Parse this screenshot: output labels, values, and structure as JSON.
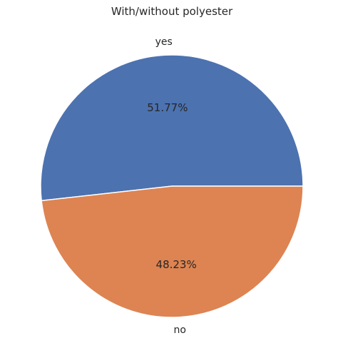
{
  "chart_data": {
    "type": "pie",
    "title": "With/without polyester",
    "categories": [
      "yes",
      "no"
    ],
    "values": [
      51.77,
      48.23
    ],
    "percent_labels": [
      "51.77%",
      "48.23%"
    ],
    "colors": [
      "#4c72b0",
      "#dd8452"
    ],
    "start_angle_deg": 0,
    "direction": "counterclockwise"
  }
}
